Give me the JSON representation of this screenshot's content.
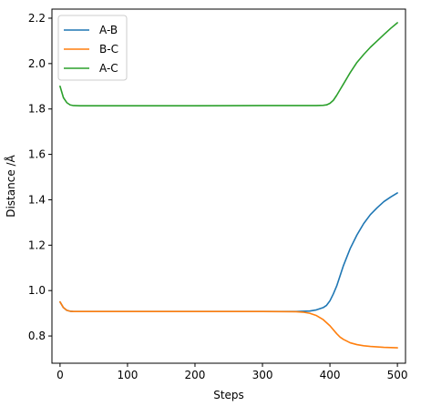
{
  "chart_data": {
    "type": "line",
    "title": "",
    "xlabel": "Steps",
    "ylabel": "Distance /Å",
    "xlim": [
      -12,
      512
    ],
    "ylim": [
      0.68,
      2.24
    ],
    "xticks": [
      0,
      100,
      200,
      300,
      400,
      500
    ],
    "yticks": [
      0.8,
      1.0,
      1.2,
      1.4,
      1.6,
      1.8,
      2.0,
      2.2
    ],
    "grid": false,
    "legend_position": "top-left",
    "series": [
      {
        "name": "A-B",
        "color": "#1f77b4",
        "x": [
          0,
          5,
          10,
          15,
          20,
          30,
          50,
          100,
          200,
          300,
          350,
          370,
          380,
          390,
          395,
          400,
          405,
          410,
          415,
          420,
          430,
          440,
          450,
          460,
          470,
          480,
          490,
          500
        ],
        "y": [
          0.95,
          0.925,
          0.913,
          0.909,
          0.908,
          0.908,
          0.908,
          0.908,
          0.908,
          0.908,
          0.908,
          0.91,
          0.915,
          0.925,
          0.935,
          0.955,
          0.985,
          1.02,
          1.065,
          1.11,
          1.185,
          1.245,
          1.295,
          1.335,
          1.365,
          1.392,
          1.412,
          1.43
        ]
      },
      {
        "name": "B-C",
        "color": "#ff7f0e",
        "x": [
          0,
          5,
          10,
          15,
          20,
          30,
          50,
          100,
          200,
          300,
          350,
          360,
          370,
          380,
          390,
          400,
          410,
          415,
          420,
          430,
          440,
          450,
          460,
          470,
          480,
          490,
          500
        ],
        "y": [
          0.95,
          0.925,
          0.913,
          0.909,
          0.908,
          0.908,
          0.908,
          0.908,
          0.908,
          0.908,
          0.907,
          0.905,
          0.9,
          0.89,
          0.872,
          0.845,
          0.81,
          0.795,
          0.785,
          0.77,
          0.762,
          0.757,
          0.754,
          0.752,
          0.75,
          0.749,
          0.748
        ]
      },
      {
        "name": "A-C",
        "color": "#2ca02c",
        "x": [
          0,
          5,
          10,
          15,
          20,
          30,
          50,
          100,
          200,
          300,
          350,
          380,
          390,
          395,
          400,
          405,
          410,
          415,
          420,
          430,
          440,
          450,
          460,
          470,
          480,
          490,
          500
        ],
        "y": [
          1.9,
          1.85,
          1.828,
          1.818,
          1.815,
          1.814,
          1.814,
          1.814,
          1.814,
          1.815,
          1.815,
          1.815,
          1.816,
          1.818,
          1.825,
          1.838,
          1.86,
          1.885,
          1.91,
          1.96,
          2.005,
          2.04,
          2.072,
          2.1,
          2.128,
          2.155,
          2.18
        ]
      }
    ]
  }
}
